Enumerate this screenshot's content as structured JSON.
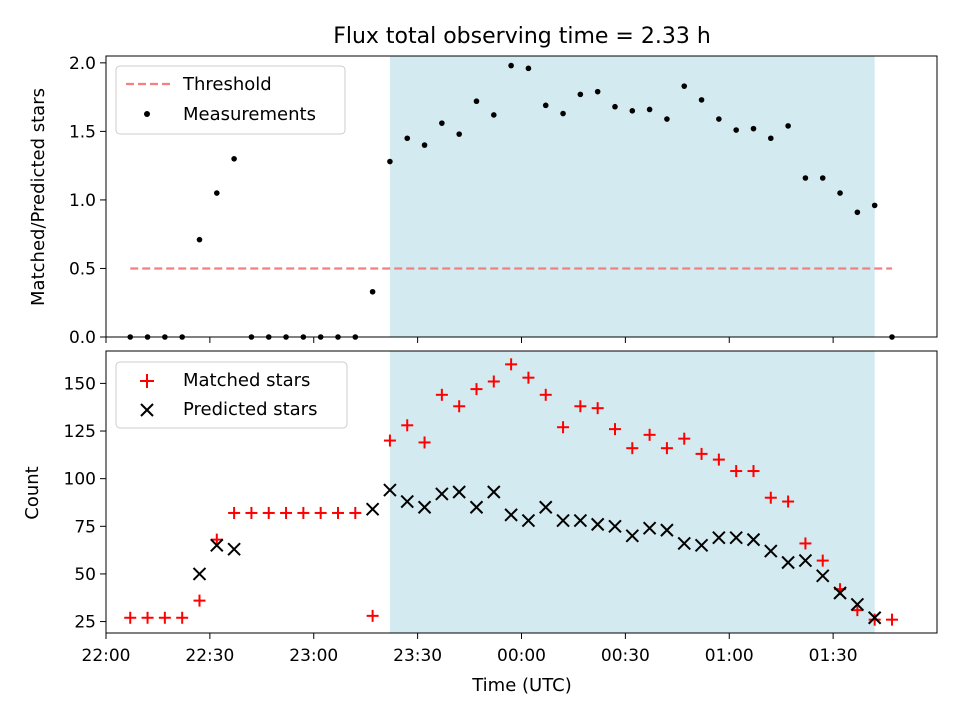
{
  "colors": {
    "shade": "#d3eaf0",
    "threshold": "#f28080",
    "measurement": "#000000",
    "matched": "#ff0000",
    "predicted": "#000000"
  },
  "chart_data": [
    {
      "type": "scatter",
      "title": "Flux total observing time = 2.33 h",
      "xlabel": "",
      "ylabel": "Matched/Predicted stars",
      "ylim": [
        0,
        2.05
      ],
      "y_ticks": [
        "0.0",
        "0.5",
        "1.0",
        "1.5",
        "2.0"
      ],
      "y_tick_values": [
        0,
        0.5,
        1.0,
        1.5,
        2.0
      ],
      "x_axis": "time (shared with lower panel, tick labels hidden)",
      "shaded_interval": [
        "23:22",
        "01:42"
      ],
      "legend": {
        "placement": "upper-left",
        "entries": [
          "Threshold",
          "Measurements"
        ]
      },
      "threshold": {
        "name": "Threshold",
        "value": 0.5,
        "x": [
          "22:07",
          "01:47"
        ],
        "style": "dashed"
      },
      "series": [
        {
          "name": "Measurements",
          "marker": "dot",
          "x": [
            "22:07",
            "22:12",
            "22:17",
            "22:22",
            "22:27",
            "22:32",
            "22:37",
            "22:42",
            "22:47",
            "22:52",
            "22:57",
            "23:02",
            "23:07",
            "23:12",
            "23:17",
            "23:22",
            "23:27",
            "23:32",
            "23:37",
            "23:42",
            "23:47",
            "23:52",
            "23:57",
            "00:02",
            "00:07",
            "00:12",
            "00:17",
            "00:22",
            "00:27",
            "00:32",
            "00:37",
            "00:42",
            "00:47",
            "00:52",
            "00:57",
            "01:02",
            "01:07",
            "01:12",
            "01:17",
            "01:22",
            "01:27",
            "01:32",
            "01:37",
            "01:42",
            "01:47"
          ],
          "y": [
            0,
            0,
            0,
            0,
            0.71,
            1.05,
            1.3,
            0,
            0,
            0,
            0,
            0,
            0,
            0,
            0.33,
            1.28,
            1.45,
            1.4,
            1.56,
            1.48,
            1.72,
            1.62,
            1.98,
            1.96,
            1.69,
            1.63,
            1.77,
            1.79,
            1.68,
            1.65,
            1.66,
            1.59,
            1.83,
            1.73,
            1.59,
            1.51,
            1.52,
            1.45,
            1.54,
            1.16,
            1.16,
            1.05,
            0.91,
            0.96,
            0
          ]
        }
      ]
    },
    {
      "type": "scatter",
      "title": "",
      "xlabel": "Time (UTC)",
      "ylabel": "Count",
      "ylim": [
        19,
        167
      ],
      "y_ticks": [
        "25",
        "50",
        "75",
        "100",
        "125",
        "150"
      ],
      "y_tick_values": [
        25,
        50,
        75,
        100,
        125,
        150
      ],
      "xlim": [
        "22:00",
        "02:00"
      ],
      "x_ticks": [
        "22:00",
        "22:30",
        "23:00",
        "23:30",
        "00:00",
        "00:30",
        "01:00",
        "01:30"
      ],
      "shaded_interval": [
        "23:22",
        "01:42"
      ],
      "legend": {
        "placement": "upper-left",
        "entries": [
          "Matched stars",
          "Predicted stars"
        ]
      },
      "series": [
        {
          "name": "Matched stars",
          "marker": "plus",
          "x": [
            "22:07",
            "22:12",
            "22:17",
            "22:22",
            "22:27",
            "22:32",
            "22:37",
            "22:42",
            "22:47",
            "22:52",
            "22:57",
            "23:02",
            "23:07",
            "23:12",
            "23:17",
            "23:22",
            "23:27",
            "23:32",
            "23:37",
            "23:42",
            "23:47",
            "23:52",
            "23:57",
            "00:02",
            "00:07",
            "00:12",
            "00:17",
            "00:22",
            "00:27",
            "00:32",
            "00:37",
            "00:42",
            "00:47",
            "00:52",
            "00:57",
            "01:02",
            "01:07",
            "01:12",
            "01:17",
            "01:22",
            "01:27",
            "01:32",
            "01:37",
            "01:42",
            "01:47"
          ],
          "y": [
            27,
            27,
            27,
            27,
            36,
            68,
            82,
            82,
            82,
            82,
            82,
            82,
            82,
            82,
            28,
            120,
            128,
            119,
            144,
            138,
            147,
            151,
            160,
            153,
            144,
            127,
            138,
            137,
            126,
            116,
            123,
            116,
            121,
            113,
            110,
            104,
            104,
            90,
            88,
            66,
            57,
            42,
            31,
            26,
            26
          ]
        },
        {
          "name": "Predicted stars",
          "marker": "x",
          "x": [
            "22:27",
            "22:32",
            "22:37",
            "23:17",
            "23:22",
            "23:27",
            "23:32",
            "23:37",
            "23:42",
            "23:47",
            "23:52",
            "23:57",
            "00:02",
            "00:07",
            "00:12",
            "00:17",
            "00:22",
            "00:27",
            "00:32",
            "00:37",
            "00:42",
            "00:47",
            "00:52",
            "00:57",
            "01:02",
            "01:07",
            "01:12",
            "01:17",
            "01:22",
            "01:27",
            "01:32",
            "01:37",
            "01:42"
          ],
          "y": [
            50,
            65,
            63,
            84,
            94,
            88,
            85,
            92,
            93,
            85,
            93,
            81,
            78,
            85,
            78,
            78,
            76,
            75,
            70,
            74,
            73,
            66,
            65,
            69,
            69,
            68,
            62,
            56,
            57,
            49,
            40,
            34,
            27
          ]
        }
      ]
    }
  ]
}
